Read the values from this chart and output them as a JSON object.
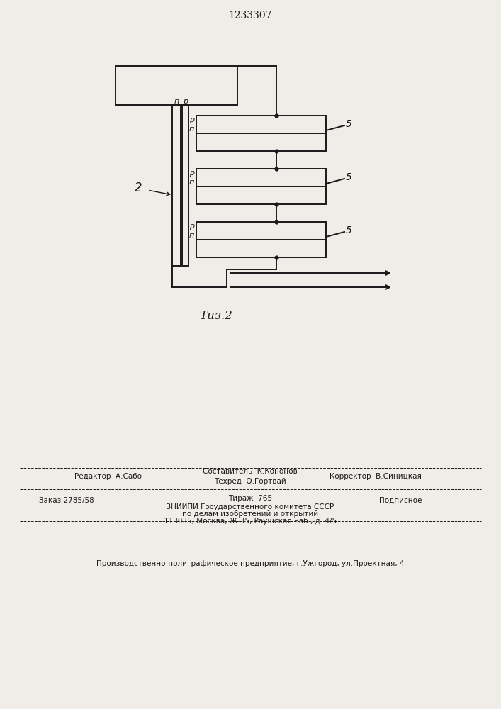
{
  "title": "1233307",
  "fig_label": "Τиз.2",
  "background_color": "#f0ede8",
  "line_color": "#1a1a1a",
  "label_2": "2",
  "label_5": "5",
  "label_p": "р",
  "label_n": "п",
  "footer": {
    "editor": "Редактор  А.Сабо",
    "composer": "Составитель  К.Кононов",
    "techred": "Техред  О.Гортвай",
    "corrector": "Корректор  В.Синицкая",
    "order": "Заказ 2785/58",
    "tirazh": "Тираж  765",
    "podpisnoe": "Подписное",
    "vniip1": "ВНИИПИ Государственного комитета СССР",
    "vniip2": "по делам изобретений и открытий",
    "address": "113035, Москва, Ж-35, Раушская наб., д. 4/5",
    "factory": "Производственно-полиграфическое предприятие, г.Ужгород, ул.Проектная, 4"
  }
}
